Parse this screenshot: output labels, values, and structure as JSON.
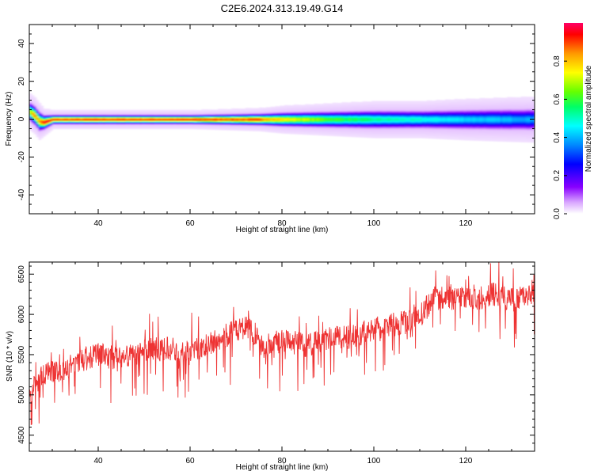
{
  "title": "C2E6.2024.313.19.49.G14",
  "chart_data": [
    {
      "type": "heatmap",
      "xlabel": "Height of straight line (km)",
      "ylabel": "Frequency (Hz)",
      "xlim": [
        25,
        135
      ],
      "ylim": [
        -50,
        50
      ],
      "x_ticks": [
        40,
        60,
        80,
        100,
        120
      ],
      "y_ticks": [
        40,
        20,
        0,
        -20,
        -40
      ],
      "y_tick_labels": [
        "40",
        "20",
        "0",
        "-20",
        "-40"
      ],
      "colorbar": {
        "label": "Normalized spectral amplitude",
        "range": [
          0,
          1
        ],
        "ticks": [
          0.0,
          0.2,
          0.4,
          0.6,
          0.8
        ],
        "tick_labels": [
          "0.0",
          "0.2",
          "0.4",
          "0.6",
          "0.8"
        ],
        "colormap": "rainbow"
      },
      "ridge": {
        "description_points_x": [
          25,
          26,
          27,
          28,
          30,
          40,
          60,
          75,
          80,
          90,
          100,
          110,
          120,
          135
        ],
        "center_freq_hz": [
          4,
          2,
          -1,
          -1.5,
          0,
          0,
          0,
          0,
          0,
          0,
          0,
          0,
          0,
          0
        ],
        "peak_amplitude": [
          0.75,
          0.9,
          0.85,
          1.0,
          0.95,
          0.97,
          0.97,
          0.93,
          0.8,
          0.65,
          0.55,
          0.5,
          0.45,
          0.4
        ],
        "halfwidth_hz": [
          4,
          4,
          4,
          3,
          2,
          2,
          2,
          2.5,
          3,
          3.5,
          4,
          4,
          4.5,
          5
        ]
      }
    },
    {
      "type": "line",
      "xlabel": "Height of straight line (km)",
      "ylabel": "SNR (10 * v/v)",
      "xlim": [
        25,
        135
      ],
      "ylim": [
        4300,
        6650
      ],
      "x_ticks": [
        40,
        60,
        80,
        100,
        120
      ],
      "y_ticks": [
        4500,
        5000,
        5500,
        6000,
        6500
      ],
      "series": [
        {
          "color": "#ee3333",
          "x": [
            25,
            28,
            32,
            36,
            40,
            45,
            50,
            55,
            60,
            65,
            70,
            73,
            76,
            80,
            85,
            90,
            95,
            100,
            105,
            110,
            113,
            118,
            122,
            126,
            130,
            135
          ],
          "y": [
            5000,
            5250,
            5300,
            5420,
            5500,
            5450,
            5560,
            5570,
            5530,
            5650,
            5800,
            5850,
            5600,
            5680,
            5620,
            5700,
            5720,
            5820,
            5880,
            5970,
            6200,
            6200,
            6180,
            6250,
            6180,
            6220
          ]
        }
      ]
    }
  ]
}
